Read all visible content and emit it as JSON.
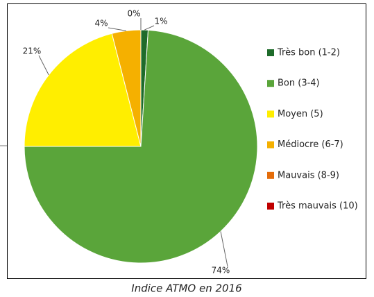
{
  "chart_data": {
    "type": "pie",
    "caption": "Indice ATMO en 2016",
    "categories": [
      "Très bon (1-2)",
      "Bon (3-4)",
      "Moyen (5)",
      "Médiocre (6-7)",
      "Mauvais (8-9)",
      "Très mauvais (10)"
    ],
    "values": [
      1,
      74,
      21,
      4,
      0,
      0
    ],
    "value_labels": [
      "1%",
      "74%",
      "21%",
      "4%",
      "0%",
      null
    ],
    "colors": [
      "#1e6b2a",
      "#5aa53a",
      "#ffee00",
      "#f5b000",
      "#e46c0a",
      "#c00000"
    ],
    "legend": "right"
  }
}
